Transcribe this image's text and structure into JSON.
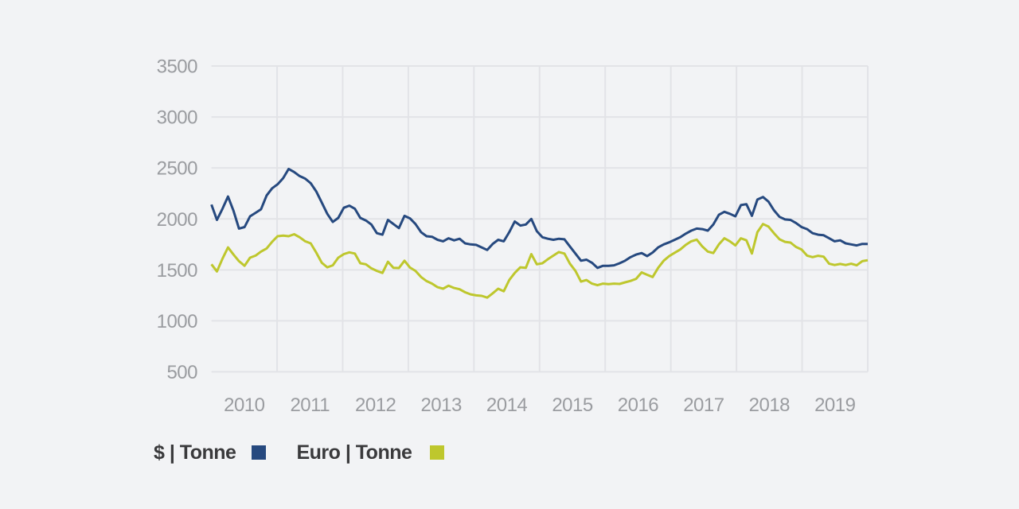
{
  "colors": {
    "background": "#f2f3f5",
    "gridline": "#e2e3e7",
    "axis_label_text": "#9a9ca0",
    "legend_text": "#3a3a3c",
    "usd_line": "#26497f",
    "euro_line": "#bec72d"
  },
  "chart_data": {
    "type": "line",
    "title": "",
    "xlabel": "",
    "ylabel": "",
    "grid": true,
    "legend_position": "bottom-left",
    "ylim": [
      500,
      3500
    ],
    "y_ticks": [
      3500,
      3000,
      2500,
      2000,
      1500,
      1000,
      500
    ],
    "x_ticks": [
      "2010",
      "2011",
      "2012",
      "2013",
      "2014",
      "2015",
      "2016",
      "2017",
      "2018",
      "2019"
    ],
    "x_resolution": "monthly",
    "x_start": "2010-01",
    "x_end": "2019-12",
    "series": [
      {
        "name": "$ | Tonne",
        "color": "#26497f",
        "values": [
          2140,
          1990,
          2100,
          2220,
          2080,
          1905,
          1920,
          2025,
          2060,
          2095,
          2230,
          2300,
          2340,
          2400,
          2490,
          2460,
          2420,
          2395,
          2350,
          2270,
          2160,
          2050,
          1970,
          2010,
          2110,
          2130,
          2100,
          2010,
          1985,
          1945,
          1860,
          1845,
          1990,
          1950,
          1910,
          2030,
          2005,
          1950,
          1870,
          1830,
          1825,
          1795,
          1780,
          1810,
          1790,
          1805,
          1760,
          1750,
          1745,
          1720,
          1695,
          1755,
          1795,
          1780,
          1870,
          1975,
          1935,
          1945,
          2000,
          1880,
          1820,
          1805,
          1795,
          1805,
          1800,
          1730,
          1660,
          1590,
          1600,
          1570,
          1520,
          1540,
          1540,
          1545,
          1565,
          1590,
          1625,
          1650,
          1665,
          1635,
          1670,
          1720,
          1750,
          1770,
          1795,
          1820,
          1855,
          1885,
          1905,
          1900,
          1885,
          1945,
          2040,
          2070,
          2050,
          2025,
          2135,
          2145,
          2030,
          2190,
          2215,
          2170,
          2085,
          2020,
          1995,
          1990,
          1960,
          1920,
          1900,
          1860,
          1845,
          1840,
          1810,
          1780,
          1790,
          1760,
          1750,
          1740,
          1755,
          1755
        ]
      },
      {
        "name": "Euro | Tonne",
        "color": "#bec72d",
        "values": [
          1555,
          1485,
          1610,
          1720,
          1650,
          1585,
          1540,
          1620,
          1640,
          1680,
          1710,
          1775,
          1830,
          1836,
          1830,
          1850,
          1820,
          1780,
          1760,
          1670,
          1570,
          1525,
          1545,
          1620,
          1655,
          1672,
          1660,
          1565,
          1555,
          1515,
          1490,
          1470,
          1580,
          1520,
          1518,
          1590,
          1523,
          1490,
          1430,
          1390,
          1365,
          1330,
          1315,
          1345,
          1322,
          1310,
          1280,
          1260,
          1250,
          1245,
          1228,
          1270,
          1315,
          1290,
          1400,
          1470,
          1525,
          1520,
          1655,
          1555,
          1565,
          1605,
          1640,
          1675,
          1660,
          1560,
          1490,
          1385,
          1400,
          1365,
          1350,
          1365,
          1360,
          1365,
          1362,
          1378,
          1392,
          1412,
          1475,
          1452,
          1430,
          1520,
          1590,
          1635,
          1668,
          1700,
          1745,
          1780,
          1797,
          1730,
          1680,
          1665,
          1750,
          1810,
          1780,
          1740,
          1810,
          1790,
          1660,
          1870,
          1950,
          1925,
          1860,
          1800,
          1775,
          1768,
          1725,
          1700,
          1640,
          1625,
          1638,
          1630,
          1560,
          1548,
          1558,
          1548,
          1560,
          1545,
          1585,
          1595
        ]
      }
    ]
  }
}
